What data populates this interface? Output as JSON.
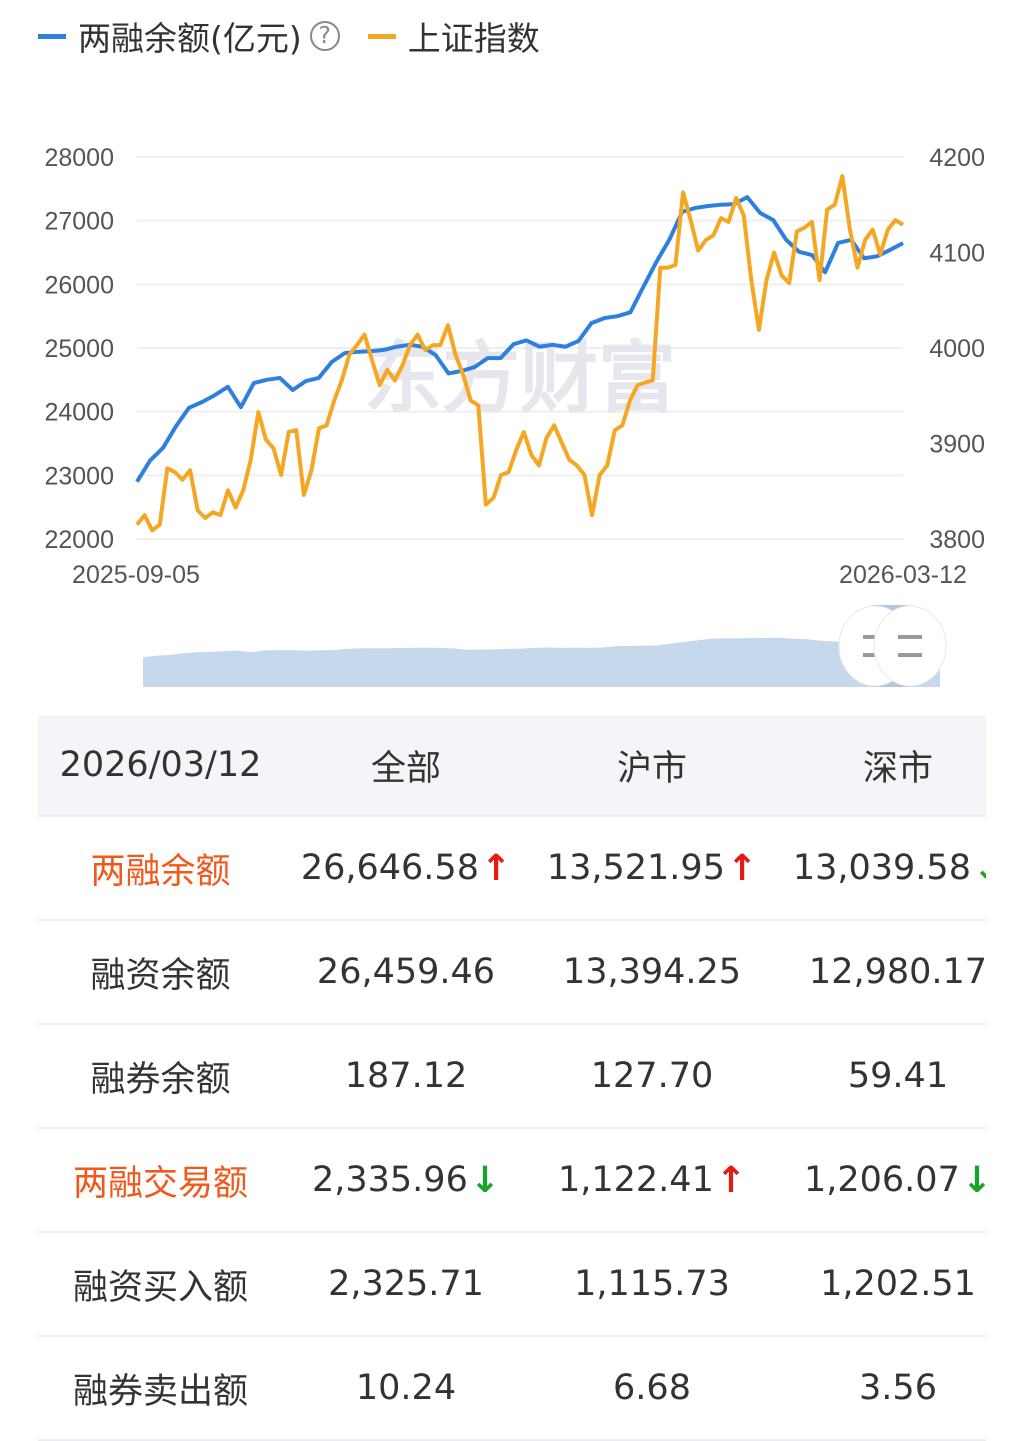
{
  "legend": {
    "series1": "两融余额(亿元)",
    "series2": "上证指数",
    "help_icon": "question-circle-icon"
  },
  "watermark": "东方财富",
  "colors": {
    "series1": "#2f7fe0",
    "series2": "#f5a623",
    "navigator": "#c5d8ec",
    "up": "#e41b17",
    "down": "#1aa22a",
    "highlight": "#f0581c"
  },
  "chart_data": {
    "type": "line",
    "x_start": "2025-09-05",
    "x_end": "2026-03-12",
    "y_left": {
      "ticks": [
        "28000",
        "27000",
        "26000",
        "25000",
        "24000",
        "23000",
        "22000"
      ],
      "range": [
        22000,
        28000
      ]
    },
    "y_right": {
      "ticks": [
        "4200",
        "4100",
        "4000",
        "3900",
        "3800"
      ],
      "range": [
        3800,
        4200
      ]
    },
    "grid": true,
    "legend_position": "top-left",
    "series": [
      {
        "name": "两融余额(亿元)",
        "axis": "left",
        "values": [
          22900,
          23230,
          23430,
          23770,
          24060,
          24150,
          24260,
          24390,
          24070,
          24450,
          24500,
          24530,
          24340,
          24480,
          24530,
          24780,
          24920,
          24940,
          24950,
          24970,
          25020,
          25050,
          25020,
          24890,
          24600,
          24640,
          24700,
          24840,
          24840,
          25060,
          25120,
          25020,
          25050,
          25020,
          25110,
          25390,
          25470,
          25500,
          25560,
          25960,
          26350,
          26700,
          27140,
          27200,
          27230,
          27250,
          27260,
          27370,
          27120,
          27010,
          26700,
          26510,
          26460,
          26190,
          26650,
          26700,
          26410,
          26440,
          26540,
          26647
        ]
      },
      {
        "name": "上证指数",
        "axis": "right",
        "values": [
          3815,
          3825,
          3809,
          3815,
          3874,
          3870,
          3862,
          3872,
          3830,
          3822,
          3828,
          3825,
          3851,
          3833,
          3851,
          3883,
          3933,
          3904,
          3895,
          3867,
          3912,
          3914,
          3846,
          3872,
          3916,
          3919,
          3945,
          3966,
          3993,
          4003,
          4014,
          3987,
          3961,
          3977,
          3966,
          3982,
          4003,
          4014,
          3998,
          4003,
          4003,
          4024,
          3993,
          3972,
          3945,
          3940,
          3836,
          3843,
          3867,
          3870,
          3893,
          3912,
          3888,
          3877,
          3906,
          3919,
          3901,
          3883,
          3877,
          3867,
          3825,
          3867,
          3877,
          3914,
          3919,
          3945,
          3961,
          3964,
          3966,
          4084,
          4084,
          4087,
          4163,
          4134,
          4102,
          4113,
          4118,
          4136,
          4132,
          4157,
          4139,
          4071,
          4019,
          4071,
          4100,
          4076,
          4068,
          4122,
          4126,
          4132,
          4071,
          4145,
          4150,
          4180,
          4124,
          4084,
          4113,
          4124,
          4098,
          4124,
          4134,
          4129
        ]
      }
    ]
  },
  "table": {
    "header": [
      "2026/03/12",
      "全部",
      "沪市",
      "深市"
    ],
    "rows": [
      {
        "label": "两融余额",
        "highlight": true,
        "cells": [
          {
            "v": "26,646.58",
            "dir": "up"
          },
          {
            "v": "13,521.95",
            "dir": "up"
          },
          {
            "v": "13,039.58",
            "dir": "down"
          }
        ]
      },
      {
        "label": "融资余额",
        "highlight": false,
        "cells": [
          {
            "v": "26,459.46"
          },
          {
            "v": "13,394.25"
          },
          {
            "v": "12,980.17"
          }
        ]
      },
      {
        "label": "融券余额",
        "highlight": false,
        "cells": [
          {
            "v": "187.12"
          },
          {
            "v": "127.70"
          },
          {
            "v": "59.41"
          }
        ]
      },
      {
        "label": "两融交易额",
        "highlight": true,
        "cells": [
          {
            "v": "2,335.96",
            "dir": "down"
          },
          {
            "v": "1,122.41",
            "dir": "up"
          },
          {
            "v": "1,206.07",
            "dir": "down"
          }
        ]
      },
      {
        "label": "融资买入额",
        "highlight": false,
        "cells": [
          {
            "v": "2,325.71"
          },
          {
            "v": "1,115.73"
          },
          {
            "v": "1,202.51"
          }
        ]
      },
      {
        "label": "融券卖出额",
        "highlight": false,
        "cells": [
          {
            "v": "10.24"
          },
          {
            "v": "6.68"
          },
          {
            "v": "3.56"
          }
        ]
      }
    ]
  }
}
